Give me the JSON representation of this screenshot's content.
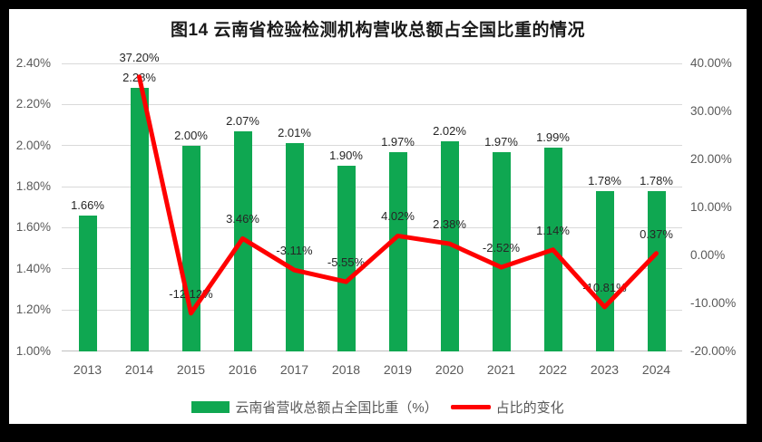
{
  "page": {
    "frame_color": "#000000",
    "panel_color": "#ffffff"
  },
  "chart_data": {
    "type": "combo-bar-line",
    "title": "图14  云南省检验检测机构营收总额占全国比重的情况",
    "categories": [
      "2013",
      "2014",
      "2015",
      "2016",
      "2017",
      "2018",
      "2019",
      "2020",
      "2021",
      "2022",
      "2023",
      "2024"
    ],
    "series": [
      {
        "name": "云南省营收总额占全国比重（%）",
        "type": "bar",
        "axis": "left",
        "color": "#0fa751",
        "values": [
          1.66,
          2.28,
          2.0,
          2.07,
          2.01,
          1.9,
          1.97,
          2.02,
          1.97,
          1.99,
          1.78,
          1.78
        ],
        "labels": [
          "1.66%",
          "2.28%",
          "2.00%",
          "2.07%",
          "2.01%",
          "1.90%",
          "1.97%",
          "2.02%",
          "1.97%",
          "1.99%",
          "1.78%",
          "1.78%"
        ]
      },
      {
        "name": "占比的变化",
        "type": "line",
        "axis": "right",
        "color": "#ff0000",
        "values": [
          null,
          37.2,
          -12.12,
          3.46,
          -3.11,
          -5.55,
          4.02,
          2.38,
          -2.52,
          1.14,
          -10.81,
          0.37
        ],
        "labels": [
          null,
          "37.20%",
          "-12.12%",
          "3.46%",
          "-3.11%",
          "-5.55%",
          "4.02%",
          "2.38%",
          "-2.52%",
          "1.14%",
          "-10.81%",
          "0.37%"
        ]
      }
    ],
    "left_axis": {
      "min": 1.0,
      "max": 2.4,
      "step": 0.2,
      "ticks": [
        {
          "v": 2.4,
          "label": "2.40%"
        },
        {
          "v": 2.2,
          "label": "2.20%"
        },
        {
          "v": 2.0,
          "label": "2.00%"
        },
        {
          "v": 1.8,
          "label": "1.80%"
        },
        {
          "v": 1.6,
          "label": "1.60%"
        },
        {
          "v": 1.4,
          "label": "1.40%"
        },
        {
          "v": 1.2,
          "label": "1.20%"
        },
        {
          "v": 1.0,
          "label": "1.00%"
        }
      ]
    },
    "right_axis": {
      "min": -20,
      "max": 40,
      "step": 10,
      "ticks": [
        {
          "v": 40,
          "label": "40.00%"
        },
        {
          "v": 30,
          "label": "30.00%"
        },
        {
          "v": 20,
          "label": "20.00%"
        },
        {
          "v": 10,
          "label": "10.00%"
        },
        {
          "v": 0,
          "label": "0.00%"
        },
        {
          "v": -10,
          "label": "-10.00%"
        },
        {
          "v": -20,
          "label": "-20.00%"
        }
      ]
    },
    "grid": true,
    "legend_position": "bottom"
  }
}
